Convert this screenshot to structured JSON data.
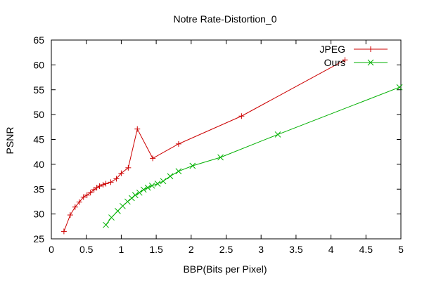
{
  "chart_data": {
    "type": "line",
    "title": "Notre Rate-Distortion_0",
    "xlabel": "BBP(Bits per Pixel)",
    "ylabel": "PSNR",
    "xlim": [
      0,
      5
    ],
    "ylim": [
      25,
      65
    ],
    "xticks": [
      "0",
      "0.5",
      "1",
      "1.5",
      "2",
      "2.5",
      "3",
      "3.5",
      "4",
      "4.5",
      "5"
    ],
    "yticks": [
      "25",
      "30",
      "35",
      "40",
      "45",
      "50",
      "55",
      "60",
      "65"
    ],
    "grid": false,
    "legend_position": "top-right",
    "series": [
      {
        "name": "JPEG",
        "color": "#cc0000",
        "marker": "plus",
        "x": [
          0.18,
          0.27,
          0.34,
          0.4,
          0.46,
          0.51,
          0.56,
          0.61,
          0.65,
          0.69,
          0.74,
          0.78,
          0.85,
          0.93,
          1.0,
          1.1,
          1.23,
          1.45,
          1.82,
          2.72,
          4.2
        ],
        "y": [
          26.5,
          29.8,
          31.4,
          32.4,
          33.4,
          33.8,
          34.3,
          34.9,
          35.3,
          35.6,
          35.9,
          36.1,
          36.4,
          37.1,
          38.2,
          39.3,
          47.1,
          41.2,
          44.1,
          49.7,
          61.0
        ]
      },
      {
        "name": "Ours",
        "color": "#00b000",
        "marker": "cross",
        "x": [
          0.78,
          0.86,
          0.95,
          1.02,
          1.09,
          1.15,
          1.2,
          1.26,
          1.32,
          1.38,
          1.44,
          1.52,
          1.6,
          1.7,
          1.82,
          2.02,
          2.42,
          3.24,
          4.98
        ],
        "y": [
          27.8,
          29.3,
          30.6,
          31.6,
          32.5,
          33.2,
          33.8,
          34.3,
          34.9,
          35.3,
          35.7,
          36.1,
          36.6,
          37.6,
          38.6,
          39.7,
          41.4,
          46.0,
          55.5
        ]
      }
    ]
  }
}
